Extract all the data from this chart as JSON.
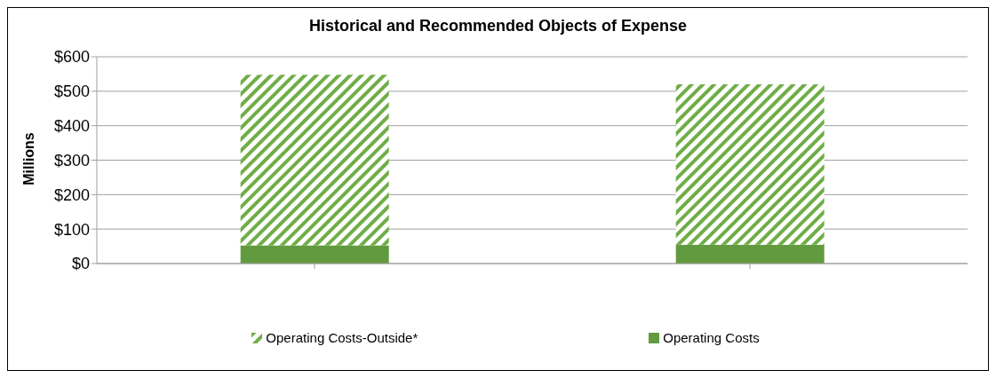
{
  "chart_data": {
    "type": "bar",
    "title": "Historical and Recommended Objects of Expense",
    "ylabel": "Millions",
    "categories": [
      null,
      null
    ],
    "stacked": true,
    "series": [
      {
        "name": "Operating Costs",
        "color": "#629b3f",
        "values": [
          53,
          55
        ]
      },
      {
        "name": "Operating Costs-Outside*",
        "color": "#70ad47",
        "values": [
          495,
          465
        ]
      }
    ],
    "ylim": [
      0,
      600
    ],
    "yticks": [
      {
        "value": 0,
        "label": "$0"
      },
      {
        "value": 100,
        "label": "$100"
      },
      {
        "value": 200,
        "label": "$200"
      },
      {
        "value": 300,
        "label": "$300"
      },
      {
        "value": 400,
        "label": "$400"
      },
      {
        "value": 500,
        "label": "$500"
      },
      {
        "value": 600,
        "label": "$600"
      }
    ],
    "grid": "y",
    "legend": "bottom"
  }
}
